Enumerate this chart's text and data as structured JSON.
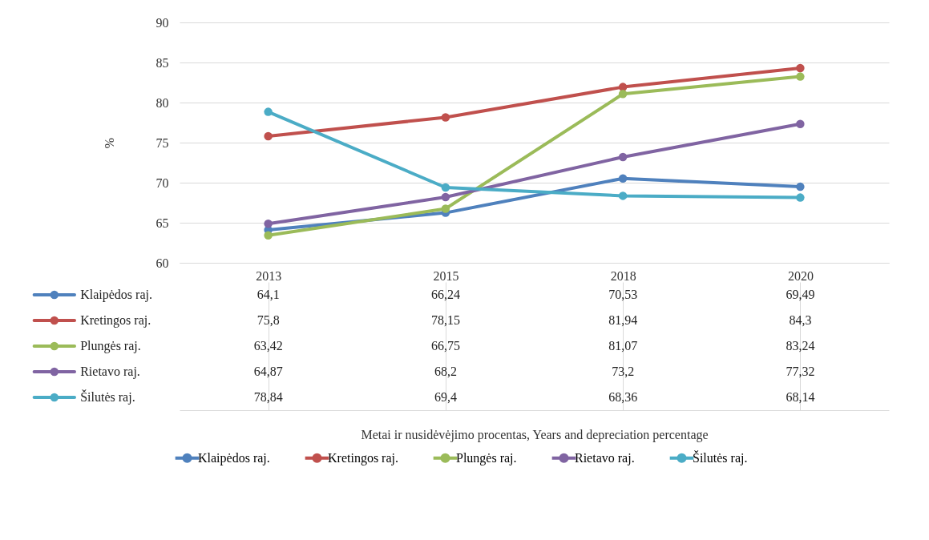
{
  "chart_data": {
    "type": "line",
    "ylabel": "%",
    "annotations": [
      "Metai ir nusidėvėjimo procentas, Years and depreciation percentage"
    ],
    "categories": [
      "2013",
      "2015",
      "2018",
      "2020"
    ],
    "series": [
      {
        "name": "Klaipėdos raj.",
        "color": "#4f81bd",
        "values": [
          64.1,
          66.24,
          70.53,
          69.49
        ],
        "value_labels": [
          "64,1",
          "66,24",
          "70,53",
          "69,49"
        ]
      },
      {
        "name": "Kretingos raj.",
        "color": "#c0504d",
        "values": [
          75.8,
          78.15,
          81.94,
          84.3
        ],
        "value_labels": [
          "75,8",
          "78,15",
          "81,94",
          "84,3"
        ]
      },
      {
        "name": "Plungės raj.",
        "color": "#9bbb59",
        "values": [
          63.42,
          66.75,
          81.07,
          83.24
        ],
        "value_labels": [
          "63,42",
          "66,75",
          "81,07",
          "83,24"
        ]
      },
      {
        "name": "Rietavo raj.",
        "color": "#8064a2",
        "values": [
          64.87,
          68.2,
          73.2,
          77.32
        ],
        "value_labels": [
          "64,87",
          "68,2",
          "73,2",
          "77,32"
        ]
      },
      {
        "name": "Šilutės raj.",
        "color": "#4bacc6",
        "values": [
          78.84,
          69.4,
          68.36,
          68.14
        ],
        "value_labels": [
          "78,84",
          "69,4",
          "68,36",
          "68,14"
        ]
      }
    ],
    "ylim": [
      60,
      90
    ],
    "yticks": [
      60,
      65,
      70,
      75,
      80,
      85,
      90
    ],
    "grid": "y",
    "legend": "bottom",
    "marker": "circle",
    "line_style": "solid"
  }
}
